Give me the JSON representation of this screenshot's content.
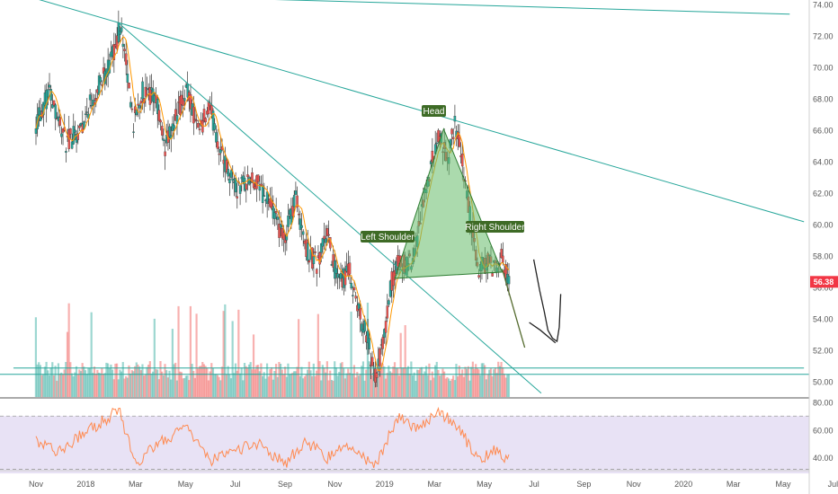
{
  "chart_data": {
    "type": "candlestick",
    "symbol_price_badge": "56.38",
    "x_tick_labels": [
      "Nov",
      "2018",
      "Mar",
      "May",
      "Jul",
      "Sep",
      "Nov",
      "2019",
      "Mar",
      "May",
      "Jul",
      "Sep",
      "Nov",
      "2020",
      "Mar",
      "May",
      "Jul"
    ],
    "price_axis": {
      "ticks": [
        74,
        72,
        70,
        68,
        66,
        64,
        62,
        60,
        58,
        56,
        54,
        52,
        50
      ],
      "ylim": [
        49,
        74.3
      ]
    },
    "rsi_axis": {
      "ticks": [
        80,
        60,
        40
      ],
      "ylim": [
        31,
        83
      ],
      "band": [
        30,
        70
      ]
    },
    "pattern": {
      "name": "Head and Shoulders",
      "left_shoulder": "Left Shoulder",
      "head": "Head",
      "right_shoulder": "Right Shoulder"
    },
    "price_path": [
      [
        "2017-10-01",
        66.5
      ],
      [
        "2017-10-20",
        68.5
      ],
      [
        "2017-11-10",
        65.2
      ],
      [
        "2017-11-28",
        66.0
      ],
      [
        "2017-12-15",
        68.0
      ],
      [
        "2018-01-08",
        70.2
      ],
      [
        "2018-01-22",
        72.8
      ],
      [
        "2018-02-08",
        66.5
      ],
      [
        "2018-02-20",
        68.5
      ],
      [
        "2018-03-10",
        67.8
      ],
      [
        "2018-03-22",
        65.0
      ],
      [
        "2018-04-05",
        66.8
      ],
      [
        "2018-04-20",
        68.8
      ],
      [
        "2018-05-05",
        65.8
      ],
      [
        "2018-05-20",
        67.5
      ],
      [
        "2018-06-05",
        64.5
      ],
      [
        "2018-06-25",
        62.2
      ],
      [
        "2018-07-10",
        62.8
      ],
      [
        "2018-07-25",
        62.5
      ],
      [
        "2018-08-10",
        61.0
      ],
      [
        "2018-08-28",
        59.0
      ],
      [
        "2018-09-12",
        61.8
      ],
      [
        "2018-09-26",
        58.5
      ],
      [
        "2018-10-10",
        57.5
      ],
      [
        "2018-10-24",
        59.5
      ],
      [
        "2018-11-08",
        56.0
      ],
      [
        "2018-11-22",
        57.2
      ],
      [
        "2018-12-05",
        54.5
      ],
      [
        "2018-12-18",
        52.5
      ],
      [
        "2018-12-26",
        50.0
      ],
      [
        "2019-01-08",
        52.8
      ],
      [
        "2019-01-18",
        56.5
      ],
      [
        "2019-01-28",
        57.8
      ],
      [
        "2019-02-08",
        57.2
      ],
      [
        "2019-02-18",
        58.5
      ],
      [
        "2019-03-01",
        61.5
      ],
      [
        "2019-03-12",
        64.0
      ],
      [
        "2019-03-22",
        66.0
      ],
      [
        "2019-04-02",
        63.8
      ],
      [
        "2019-04-12",
        66.5
      ],
      [
        "2019-04-22",
        64.0
      ],
      [
        "2019-05-02",
        60.5
      ],
      [
        "2019-05-14",
        57.0
      ],
      [
        "2019-05-26",
        57.8
      ],
      [
        "2019-06-06",
        57.0
      ],
      [
        "2019-06-14",
        58.0
      ],
      [
        "2019-06-24",
        56.4
      ]
    ],
    "volume_profile": {
      "recent_baseline": 50.5,
      "ylim_fraction": [
        0,
        1
      ]
    },
    "rsi_path": [
      [
        "2017-10-01",
        52
      ],
      [
        "2017-11-01",
        45
      ],
      [
        "2017-12-10",
        60
      ],
      [
        "2018-01-20",
        75
      ],
      [
        "2018-02-10",
        36
      ],
      [
        "2018-03-15",
        52
      ],
      [
        "2018-04-20",
        62
      ],
      [
        "2018-05-20",
        38
      ],
      [
        "2018-06-20",
        43
      ],
      [
        "2018-07-20",
        52
      ],
      [
        "2018-08-28",
        36
      ],
      [
        "2018-09-26",
        52
      ],
      [
        "2018-10-24",
        40
      ],
      [
        "2018-11-22",
        50
      ],
      [
        "2018-12-26",
        34
      ],
      [
        "2019-01-28",
        72
      ],
      [
        "2019-02-18",
        62
      ],
      [
        "2019-03-22",
        73
      ],
      [
        "2019-04-12",
        66
      ],
      [
        "2019-05-14",
        38
      ],
      [
        "2019-06-06",
        46
      ],
      [
        "2019-06-24",
        38
      ]
    ],
    "trendlines": [
      {
        "from": [
          "2017-09-01",
          74.8
        ],
        "to": [
          "2020-07-01",
          73.4
        ]
      },
      {
        "from": [
          "2017-09-01",
          74.8
        ],
        "to": [
          "2020-07-20",
          60.2
        ]
      },
      {
        "from": [
          "2018-01-20",
          72.8
        ],
        "to": [
          "2019-08-05",
          49.3
        ]
      },
      {
        "from": [
          "2017-09-01",
          50.9
        ],
        "to": [
          "2020-07-20",
          50.9
        ]
      }
    ],
    "projection": [
      [
        "2019-06-14",
        57.2
      ],
      [
        "2019-07-14",
        52.2
      ]
    ],
    "hand_drawn_arrow": [
      [
        "2019-07-26",
        57.8
      ],
      [
        "2019-08-03",
        55.8
      ],
      [
        "2019-08-09",
        54.5
      ],
      [
        "2019-08-14",
        53.3
      ],
      [
        "2019-08-20",
        52.8
      ],
      [
        "2019-08-26",
        52.6
      ],
      [
        "2019-08-29",
        53.5
      ],
      [
        "2019-08-31",
        55.6
      ]
    ],
    "arrow_hook": [
      [
        "2019-07-20",
        53.8
      ],
      [
        "2019-08-04",
        53.3
      ],
      [
        "2019-08-24",
        52.5
      ]
    ],
    "colors": {
      "up": "#26a69a",
      "down": "#ef5350",
      "ma": "#ff9800",
      "trend": "#26a69a",
      "pattern_fill": "#66bb6a",
      "pattern_stroke": "#2e7d32",
      "label_bg": "#3e6b26",
      "rsi": "#ff8a50",
      "rsi_band": "#e8e2f5",
      "price_badge": "#f23645"
    }
  }
}
